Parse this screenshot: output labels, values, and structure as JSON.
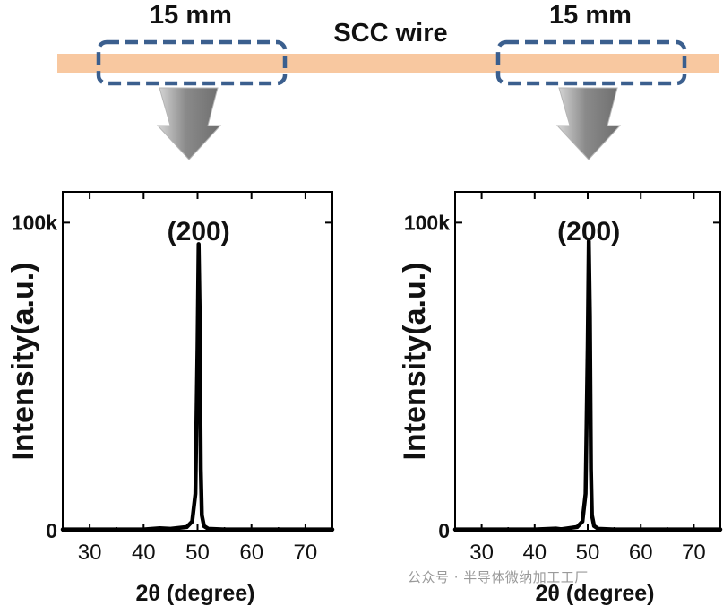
{
  "header": {
    "wire_label": "SCC wire",
    "section_labels": [
      "15 mm",
      "15 mm"
    ]
  },
  "colors": {
    "wire": "#F8C8A0",
    "dashed_box": "#3B5F8E",
    "arrow": "#909090",
    "trace": "#000000"
  },
  "chart_data": [
    {
      "type": "line",
      "title": "",
      "peak_label": "(200)",
      "xlabel": "2θ (degree)",
      "ylabel": "Intensity(a.u.)",
      "xlim": [
        25,
        75
      ],
      "ylim": [
        0,
        110000
      ],
      "xticks": [
        30,
        40,
        50,
        60,
        70
      ],
      "yticks": [
        0,
        100000
      ],
      "ytick_labels": [
        "0",
        "100k"
      ],
      "x": [
        25,
        30,
        40,
        43,
        45,
        48,
        49,
        49.6,
        50.0,
        50.2,
        50.4,
        50.6,
        50.8,
        51.2,
        52,
        55,
        60,
        70,
        75
      ],
      "y": [
        400,
        400,
        400,
        800,
        600,
        1200,
        3000,
        12000,
        60000,
        93000,
        70000,
        20000,
        5000,
        1500,
        600,
        400,
        400,
        400,
        400
      ]
    },
    {
      "type": "line",
      "title": "",
      "peak_label": "(200)",
      "xlabel": "2θ (degree)",
      "ylabel": "Intensity(a.u.)",
      "xlim": [
        25,
        75
      ],
      "ylim": [
        0,
        110000
      ],
      "xticks": [
        30,
        40,
        50,
        60,
        70
      ],
      "yticks": [
        0,
        100000
      ],
      "ytick_labels": [
        "0",
        "100k"
      ],
      "x": [
        25,
        30,
        40,
        44,
        45,
        48,
        49,
        49.6,
        50.0,
        50.2,
        50.4,
        50.6,
        50.8,
        51.2,
        52,
        55,
        60,
        70,
        75
      ],
      "y": [
        400,
        400,
        400,
        700,
        500,
        1200,
        3000,
        12000,
        60000,
        94000,
        70000,
        20000,
        5000,
        1500,
        600,
        400,
        400,
        400,
        400
      ]
    }
  ],
  "watermark": "公众号 · 半导体微纳加工工厂"
}
